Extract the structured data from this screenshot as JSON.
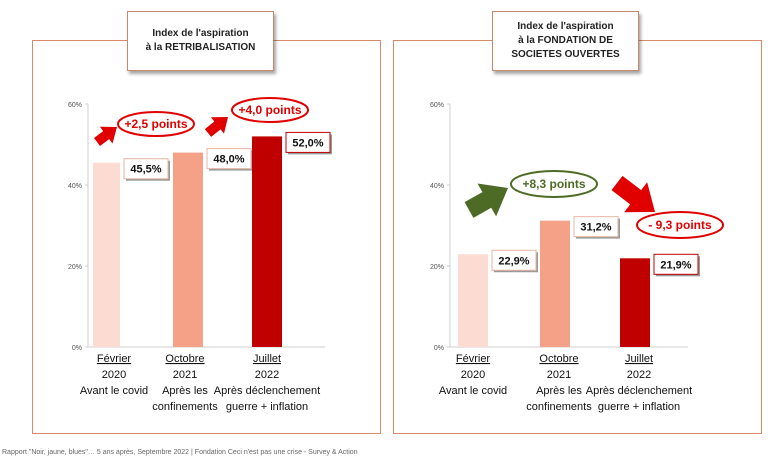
{
  "footer": "Rapport \"Noir, jaune, blues\"… 5 ans après, Septembre 2022 | Fondation Ceci n'est pas une crise - Survey & Action",
  "panels": [
    {
      "title_lines": [
        "Index de l'aspiration",
        "à la RETRIBALISATION"
      ]
    },
    {
      "title_lines": [
        "Index de l'aspiration",
        "à la FONDATION DE",
        "SOCIETES OUVERTES"
      ]
    }
  ],
  "chart_data": [
    {
      "type": "bar",
      "title": "Index de l'aspiration à la RETRIBALISATION",
      "categories": [
        [
          "Février",
          "2020",
          "Avant le covid"
        ],
        [
          "Octobre",
          "2021",
          "Après les",
          "confinements"
        ],
        [
          "Juillet",
          "2022",
          "Après déclenchement",
          "guerre + inflation"
        ]
      ],
      "values": [
        45.5,
        48.0,
        52.0
      ],
      "value_labels": [
        "45,5%",
        "48,0%",
        "52,0%"
      ],
      "bar_colors": [
        "#fcdcd2",
        "#f4a188",
        "#c00000"
      ],
      "ylim": [
        0,
        60
      ],
      "yticks": [
        0,
        20,
        40,
        60
      ],
      "ytick_labels": [
        "0%",
        "20%",
        "40%",
        "60%"
      ],
      "annotations": [
        {
          "text": "+2,5 points",
          "arrow_color": "#e00000",
          "direction": "up"
        },
        {
          "text": "+4,0 points",
          "arrow_color": "#e00000",
          "direction": "up"
        }
      ]
    },
    {
      "type": "bar",
      "title": "Index de l'aspiration à la FONDATION DE SOCIETES OUVERTES",
      "categories": [
        [
          "Février",
          "2020",
          "Avant le covid"
        ],
        [
          "Octobre",
          "2021",
          "Après les",
          "confinements"
        ],
        [
          "Juillet",
          "2022",
          "Après déclenchement",
          "guerre + inflation"
        ]
      ],
      "values": [
        22.9,
        31.2,
        21.9
      ],
      "value_labels": [
        "22,9%",
        "31,2%",
        "21,9%"
      ],
      "bar_colors": [
        "#fcdcd2",
        "#f4a188",
        "#c00000"
      ],
      "ylim": [
        0,
        60
      ],
      "yticks": [
        0,
        20,
        40,
        60
      ],
      "ytick_labels": [
        "0%",
        "20%",
        "40%",
        "60%"
      ],
      "annotations": [
        {
          "text": "+8,3 points",
          "arrow_color": "#4e6b25",
          "direction": "up"
        },
        {
          "text": "- 9,3 points",
          "arrow_color": "#e00000",
          "direction": "down"
        }
      ]
    }
  ]
}
